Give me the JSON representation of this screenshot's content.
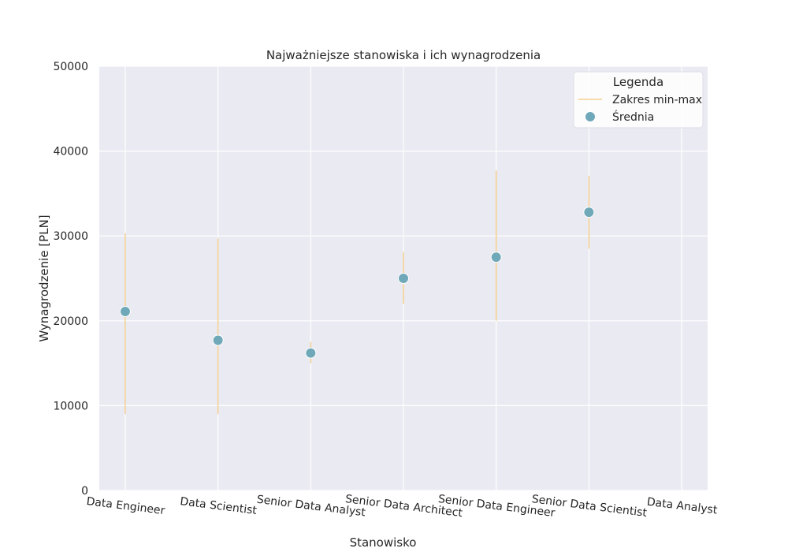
{
  "chart_data": {
    "type": "scatter",
    "title": "Najważniejsze stanowiska i ich wynagrodzenia",
    "xlabel": "Stanowisko",
    "ylabel": "Wynagrodzenie [PLN]",
    "ylim": [
      0,
      50000
    ],
    "yticks": [
      0,
      10000,
      20000,
      30000,
      40000,
      50000
    ],
    "grid": true,
    "legend": {
      "title": "Legenda",
      "placement": "top-right",
      "range_label": "Zakres min-max",
      "mean_label": "Średnia"
    },
    "categories": [
      "Data Engineer",
      "Data Scientist",
      "Senior Data Analyst",
      "Senior Data Architect",
      "Senior Data Engineer",
      "Senior Data Scientist",
      "Data Analyst"
    ],
    "points": [
      {
        "category": "Data Engineer",
        "mean": 21100,
        "min": 9000,
        "max": 30300
      },
      {
        "category": "Data Scientist",
        "mean": 17700,
        "min": 9000,
        "max": 29700
      },
      {
        "category": "Senior Data Analyst",
        "mean": 16200,
        "min": 15000,
        "max": 17500
      },
      {
        "category": "Senior Data Architect",
        "mean": 25000,
        "min": 22000,
        "max": 28100
      },
      {
        "category": "Senior Data Engineer",
        "mean": 27500,
        "min": 20000,
        "max": 37700
      },
      {
        "category": "Senior Data Scientist",
        "mean": 32800,
        "min": 28500,
        "max": 37100
      }
    ],
    "colors": {
      "background": "#eaeaf2",
      "grid": "#ffffff",
      "range": "#f5d08f",
      "mean": "#6fa8b8"
    }
  }
}
